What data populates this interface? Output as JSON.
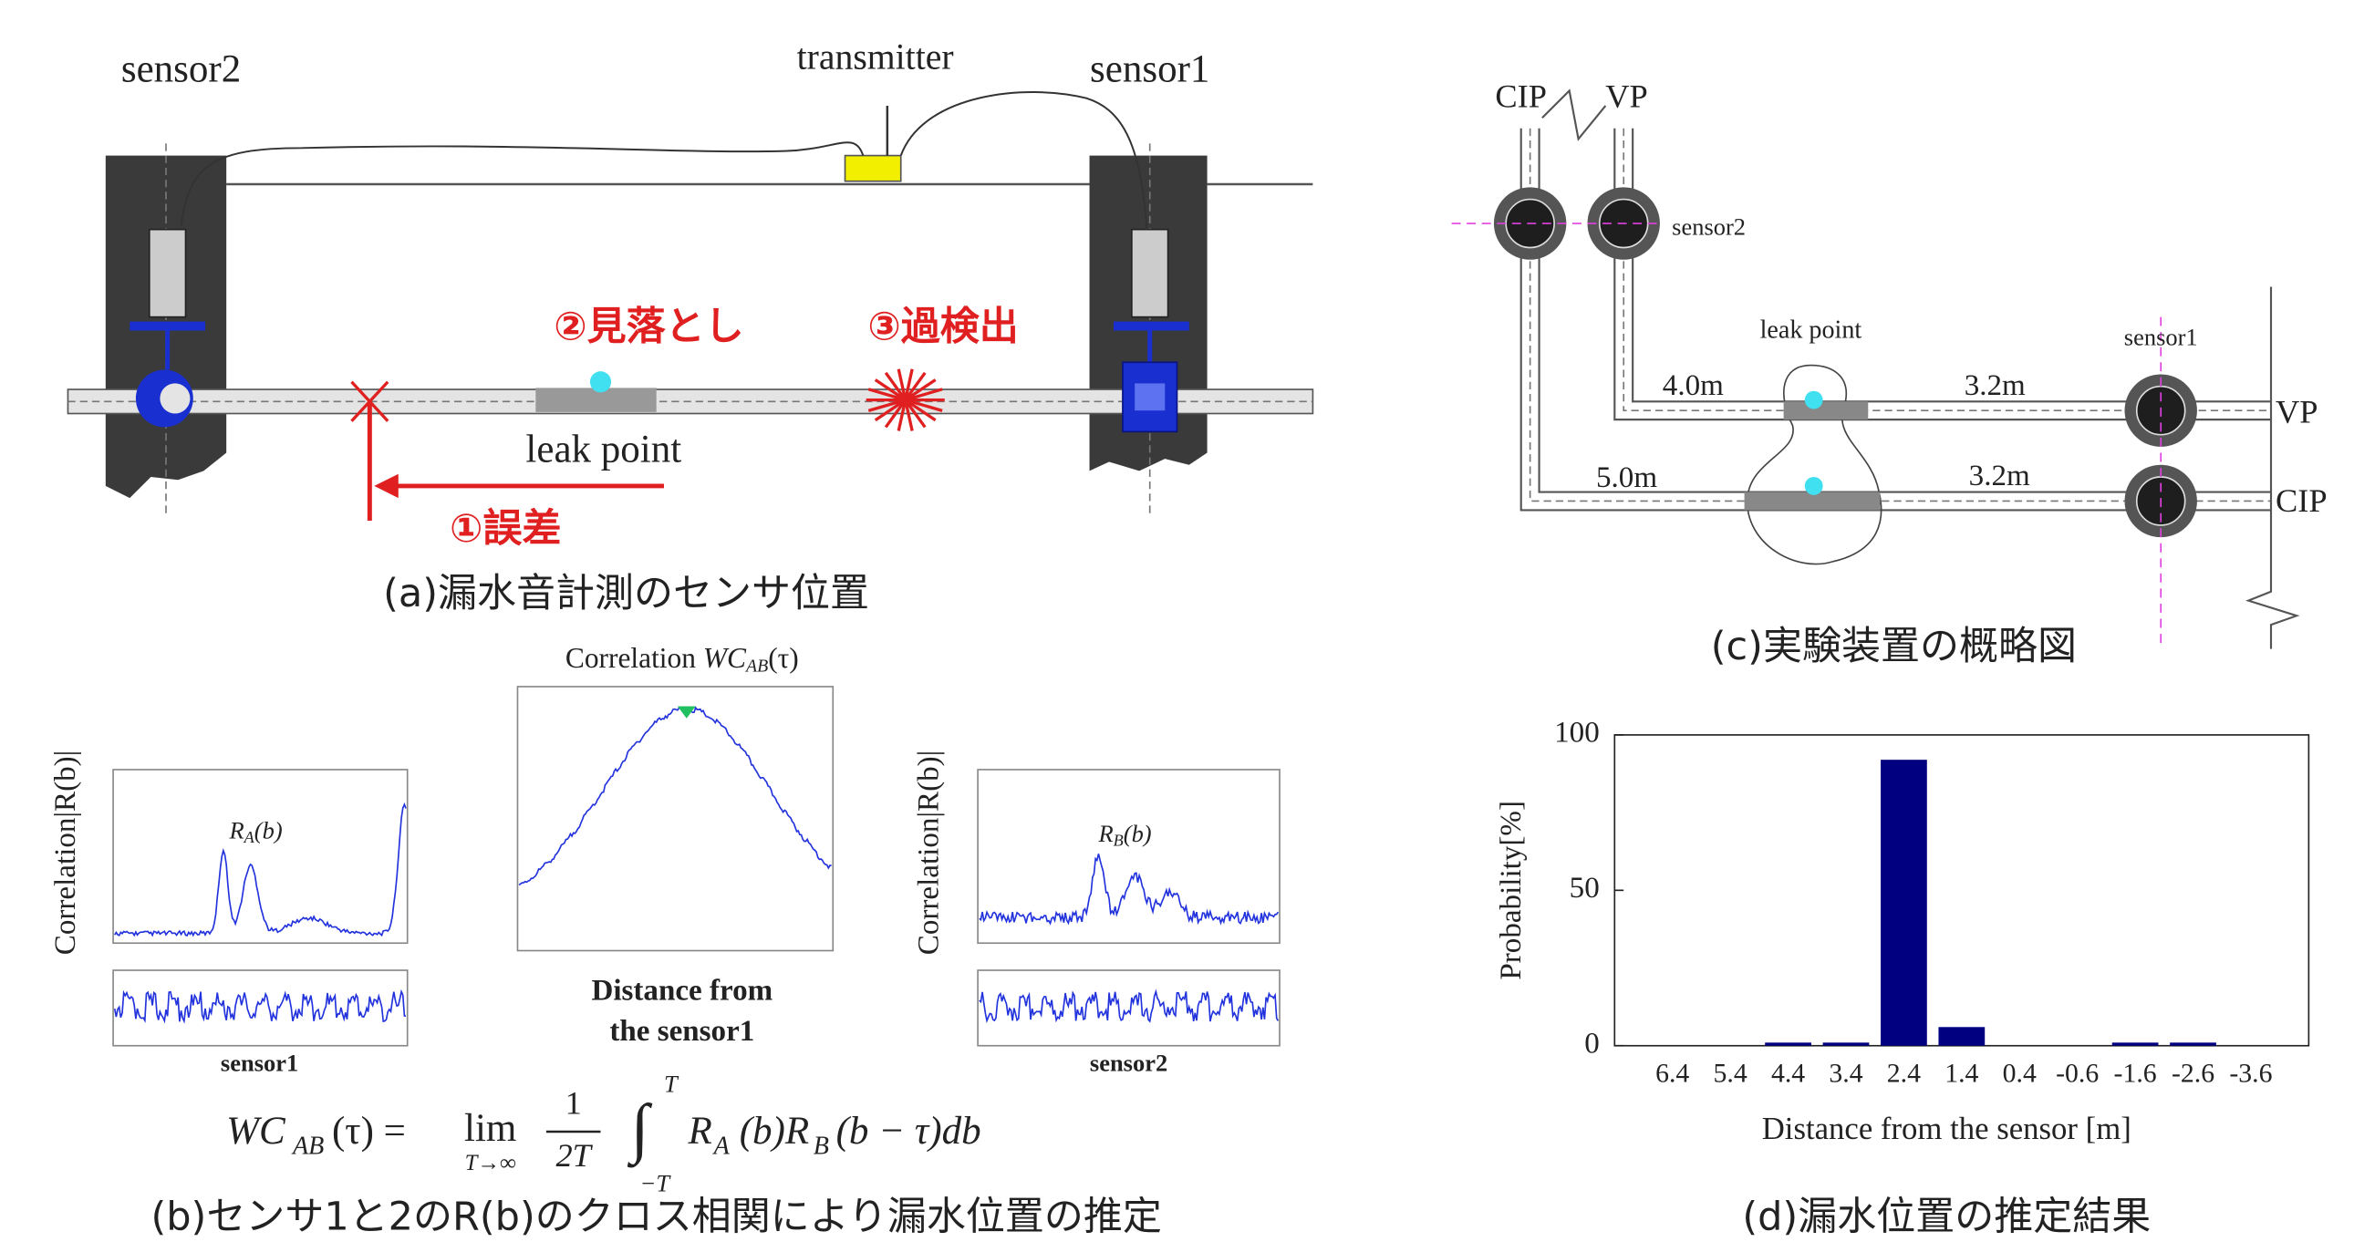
{
  "panel_a": {
    "sensor2": "sensor2",
    "transmitter": "transmitter",
    "sensor1": "sensor1",
    "missed": "②見落とし",
    "false_detection": "③過検出",
    "leak_point": "leak point",
    "error": "①誤差",
    "caption": "(a)漏水音計測のセンサ位置"
  },
  "panel_b": {
    "left_ylabel": "Correlation|R(b)|",
    "curve_a": [
      "R",
      "A",
      "(b)"
    ],
    "left_xlabel": "sensor1",
    "center_title": [
      "Correlation ",
      "WC",
      "AB",
      "(τ)"
    ],
    "center_xlabel": [
      "Distance from",
      "the sensor1"
    ],
    "right_ylabel": "Correlation|R(b)|",
    "curve_b": [
      "R",
      "B",
      "(b)"
    ],
    "right_xlabel": "sensor2",
    "formula": [
      "WC",
      "AB",
      "(τ) =",
      "lim",
      "T→∞",
      "1",
      "2T",
      "∫",
      "T",
      "−T",
      "R",
      "A",
      "(b)R",
      "B",
      "(b − τ)db"
    ],
    "caption": "(b)センサ1と2のR(b)のクロス相関により漏水位置の推定"
  },
  "panel_c": {
    "cip_top": "CIP",
    "vp_top": "VP",
    "sensor2": "sensor2",
    "leak_point": "leak point",
    "sensor1": "sensor1",
    "vp_upstream": "4.0m",
    "vp_downstream": "3.2m",
    "cip_upstream": "5.0m",
    "cip_downstream": "3.2m",
    "vp_right": "VP",
    "cip_right": "CIP",
    "caption": "(c)実験装置の概略図"
  },
  "chart_data": {
    "type": "bar",
    "categories": [
      "6.4",
      "5.4",
      "4.4",
      "3.4",
      "2.4",
      "1.4",
      "0.4",
      "-0.6",
      "-1.6",
      "-2.6",
      "-3.6"
    ],
    "values": [
      0,
      0,
      1,
      1,
      92,
      6,
      0,
      0,
      1,
      1,
      0
    ],
    "color": "#000080",
    "ylim": [
      0,
      100
    ],
    "yticks": [
      0,
      50,
      100
    ],
    "grid": false,
    "xlabel": "Distance from the sensor [m]",
    "ylabel": "Probability[%]",
    "caption": "(d)漏水位置の推定結果"
  }
}
